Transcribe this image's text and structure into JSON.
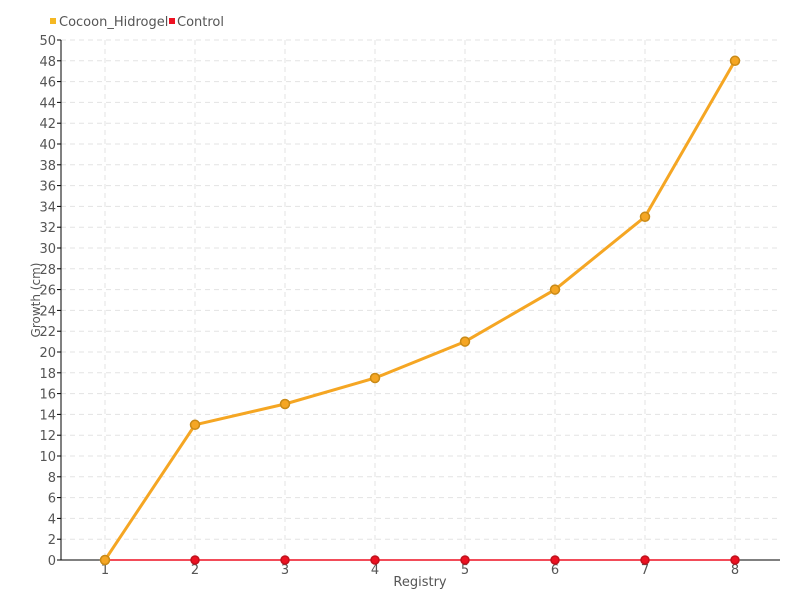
{
  "chart_data": {
    "type": "line",
    "categories": [
      "1",
      "2",
      "3",
      "4",
      "5",
      "6",
      "7",
      "8"
    ],
    "series": [
      {
        "name": "Cocoon_Hidrogel",
        "values": [
          0,
          13,
          15,
          17.5,
          21,
          26,
          33,
          48
        ],
        "color": "#f5a623"
      },
      {
        "name": "Control",
        "values": [
          0,
          0,
          0,
          0,
          0,
          0,
          0,
          0
        ],
        "color": "#ee1122"
      }
    ],
    "xlabel": "Registry",
    "ylabel": "Growth (cm)",
    "ylim": [
      0,
      50
    ],
    "ytick_step": 2,
    "grid": true,
    "legend": "top-left"
  }
}
